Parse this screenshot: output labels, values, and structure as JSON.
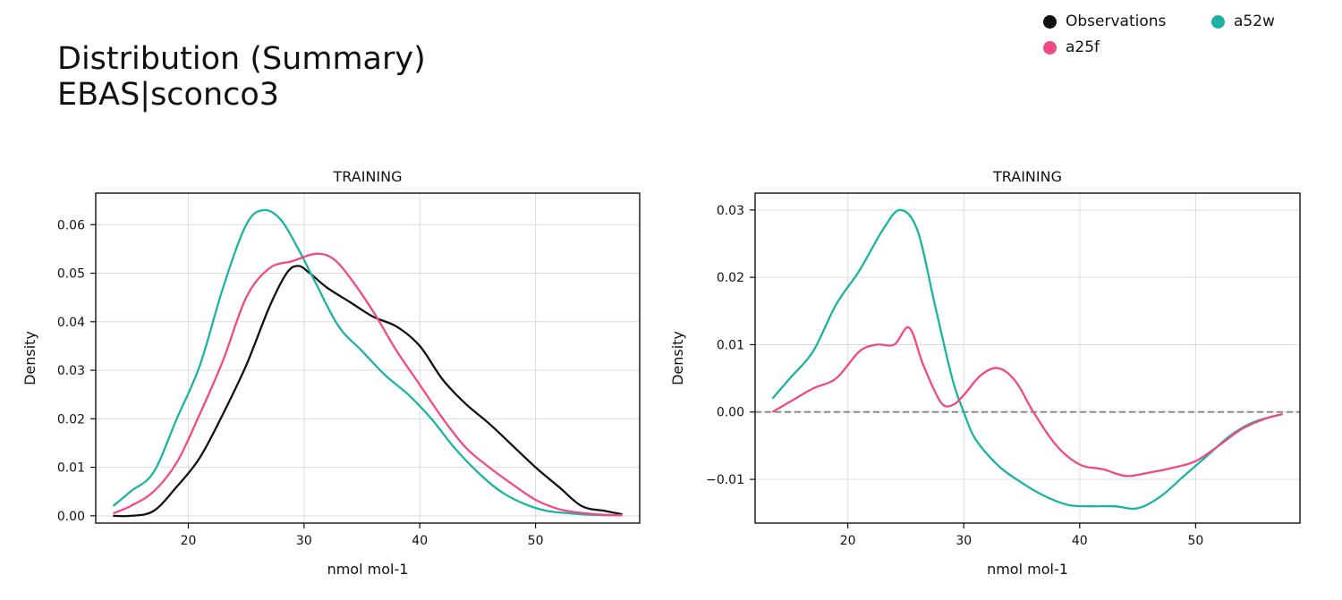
{
  "figure": {
    "title_line1": "Distribution (Summary)",
    "title_line2": "EBAS|sconco3"
  },
  "legend": [
    {
      "label": "Observations",
      "color": "#111111"
    },
    {
      "label": "a52w",
      "color": "#1cb3a4"
    },
    {
      "label": "a25f",
      "color": "#ef4a86"
    }
  ],
  "chart_data": [
    {
      "type": "line",
      "title": "TRAINING",
      "xlabel": "nmol mol-1",
      "ylabel": "Density",
      "xlim": [
        12,
        59
      ],
      "ylim": [
        -0.0015,
        0.0665
      ],
      "xticks": [
        20,
        30,
        40,
        50
      ],
      "yticks": [
        0.0,
        0.01,
        0.02,
        0.03,
        0.04,
        0.05,
        0.06
      ],
      "ytick_labels": [
        "0.00",
        "0.01",
        "0.02",
        "0.03",
        "0.04",
        "0.05",
        "0.06"
      ],
      "grid": true,
      "zero_line": false,
      "series": [
        {
          "name": "Observations",
          "color": "#111111",
          "x": [
            13.5,
            15,
            17,
            19,
            21,
            23,
            25,
            27,
            28.5,
            29.5,
            30.5,
            32,
            34,
            36,
            38,
            40,
            42,
            44,
            46,
            48,
            50,
            52,
            54,
            56,
            57.5
          ],
          "y": [
            0.0,
            0.0,
            0.001,
            0.006,
            0.012,
            0.021,
            0.031,
            0.043,
            0.05,
            0.0515,
            0.05,
            0.047,
            0.044,
            0.041,
            0.039,
            0.035,
            0.028,
            0.023,
            0.019,
            0.0145,
            0.01,
            0.006,
            0.002,
            0.001,
            0.0003
          ]
        },
        {
          "name": "a52w",
          "color": "#1cb3a4",
          "x": [
            13.5,
            15,
            17,
            19,
            21,
            23,
            25,
            26.5,
            28,
            29.5,
            31,
            33,
            35,
            37,
            39,
            41,
            43,
            45,
            47,
            49,
            51,
            53,
            55,
            57.5
          ],
          "y": [
            0.002,
            0.005,
            0.009,
            0.02,
            0.031,
            0.047,
            0.06,
            0.063,
            0.061,
            0.055,
            0.048,
            0.039,
            0.034,
            0.029,
            0.025,
            0.02,
            0.014,
            0.009,
            0.005,
            0.0025,
            0.001,
            0.0005,
            0.0002,
            0.0001
          ]
        },
        {
          "name": "a25f",
          "color": "#ef4a86",
          "x": [
            13.5,
            15,
            17,
            19,
            21,
            23,
            25,
            27,
            29,
            31,
            32.5,
            34,
            36,
            38,
            40,
            42,
            44,
            46,
            48,
            50,
            52,
            54,
            56,
            57.5
          ],
          "y": [
            0.0005,
            0.002,
            0.005,
            0.011,
            0.021,
            0.032,
            0.045,
            0.051,
            0.0525,
            0.054,
            0.053,
            0.049,
            0.042,
            0.034,
            0.027,
            0.02,
            0.014,
            0.01,
            0.0065,
            0.0033,
            0.0014,
            0.0006,
            0.0002,
            0.0001
          ]
        }
      ]
    },
    {
      "type": "line",
      "title": "TRAINING",
      "xlabel": "nmol mol-1",
      "ylabel": "Density",
      "xlim": [
        12,
        59
      ],
      "ylim": [
        -0.0165,
        0.0325
      ],
      "xticks": [
        20,
        30,
        40,
        50
      ],
      "yticks": [
        -0.01,
        0.0,
        0.01,
        0.02,
        0.03
      ],
      "ytick_labels": [
        "−0.01",
        "0.00",
        "0.01",
        "0.02",
        "0.03"
      ],
      "grid": true,
      "zero_line": true,
      "series": [
        {
          "name": "a52w",
          "color": "#1cb3a4",
          "x": [
            13.5,
            15,
            17,
            19,
            21,
            23,
            24.5,
            26,
            27.5,
            29,
            30,
            31,
            33,
            35,
            37,
            39,
            41,
            43,
            45,
            47,
            49,
            51,
            53,
            55,
            57.5
          ],
          "y": [
            0.002,
            0.005,
            0.009,
            0.016,
            0.021,
            0.027,
            0.03,
            0.027,
            0.016,
            0.005,
            0.0,
            -0.004,
            -0.008,
            -0.0105,
            -0.0125,
            -0.0138,
            -0.014,
            -0.014,
            -0.0143,
            -0.0125,
            -0.0095,
            -0.0065,
            -0.0035,
            -0.0015,
            -0.0003
          ]
        },
        {
          "name": "a25f",
          "color": "#ef4a86",
          "x": [
            13.5,
            15,
            17,
            19,
            21,
            22.5,
            24,
            25.3,
            26.5,
            28,
            29,
            30,
            31.5,
            33,
            34.5,
            36,
            38,
            40,
            42,
            44,
            46,
            48,
            50,
            52,
            54,
            56,
            57.5
          ],
          "y": [
            0.0,
            0.0015,
            0.0035,
            0.005,
            0.009,
            0.01,
            0.01,
            0.0125,
            0.007,
            0.0015,
            0.001,
            0.0025,
            0.0055,
            0.0065,
            0.0045,
            0.0,
            -0.005,
            -0.0078,
            -0.0085,
            -0.0095,
            -0.009,
            -0.0083,
            -0.0073,
            -0.005,
            -0.0025,
            -0.001,
            -0.0003
          ]
        }
      ]
    }
  ]
}
